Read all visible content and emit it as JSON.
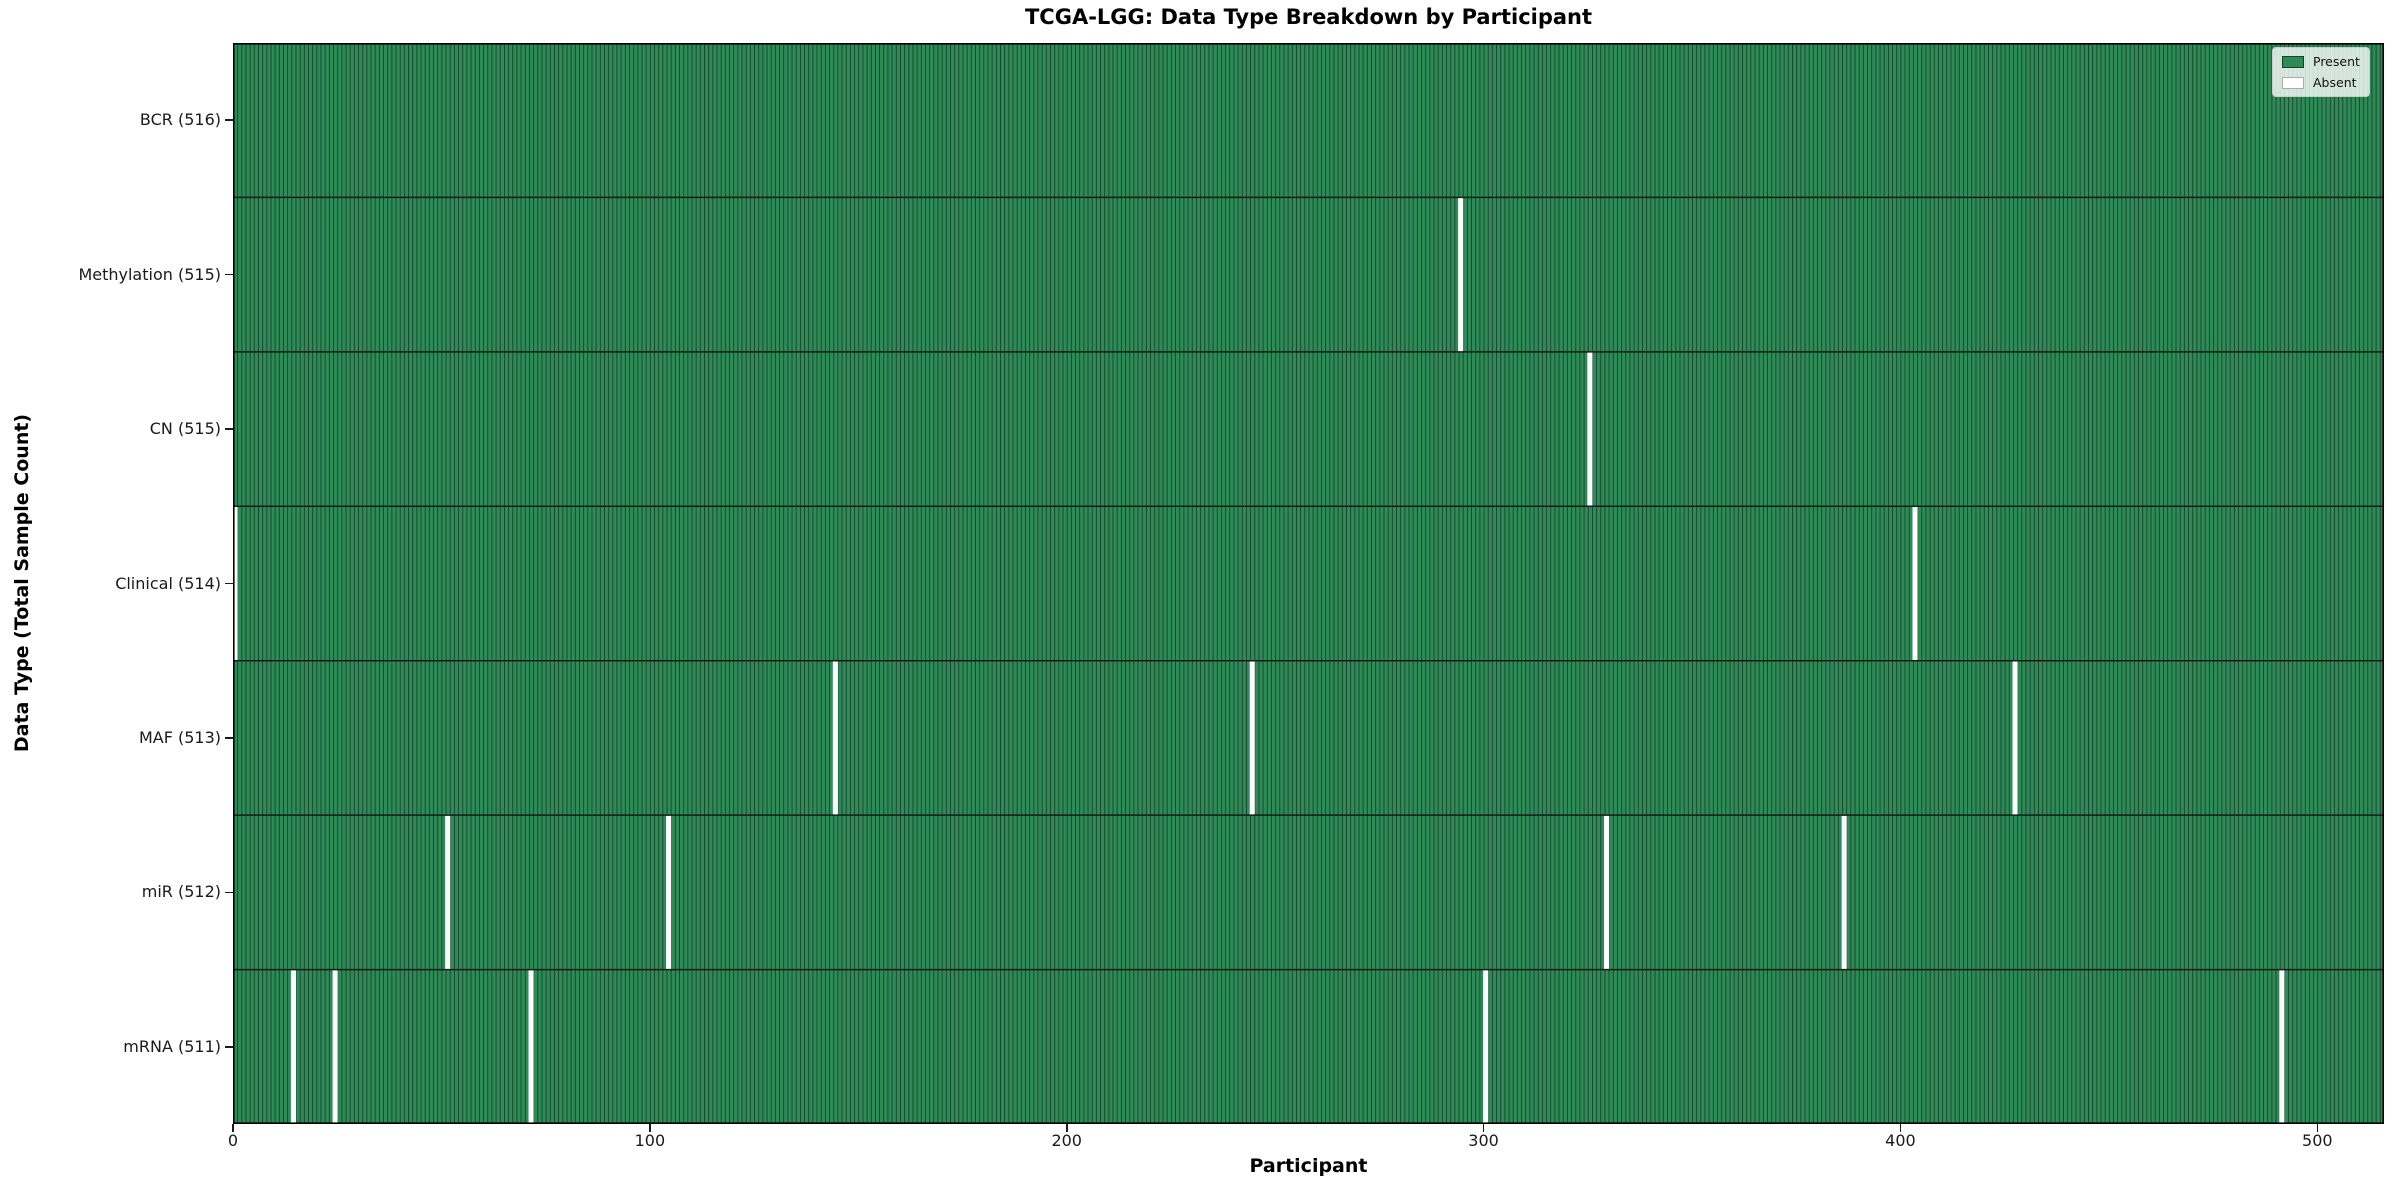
{
  "chart_data": {
    "type": "heatmap",
    "title": "TCGA-LGG: Data Type Breakdown by Participant",
    "xlabel": "Participant",
    "ylabel": "Data Type (Total Sample Count)",
    "x_ticks": [
      0,
      100,
      200,
      300,
      400,
      500
    ],
    "x_axis_range": [
      0,
      516
    ],
    "n_participants": 516,
    "grid": false,
    "legend_position": "upper right",
    "legend": [
      {
        "label": "Present",
        "color": "#2e8b57"
      },
      {
        "label": "Absent",
        "color": "#ffffff"
      }
    ],
    "colors": {
      "present": "#2e8b57",
      "absent": "#ffffff",
      "cell_edge": "#16432b",
      "row_boundary": "#1a1a1a",
      "plot_border": "#000000"
    },
    "rows": [
      {
        "label": "BCR (516)",
        "data_type": "BCR",
        "total": 516,
        "absent_participants": []
      },
      {
        "label": "Methylation (515)",
        "data_type": "Methylation",
        "total": 515,
        "absent_participants": [
          294
        ]
      },
      {
        "label": "CN (515)",
        "data_type": "CN",
        "total": 515,
        "absent_participants": [
          325
        ]
      },
      {
        "label": "Clinical (514)",
        "data_type": "Clinical",
        "total": 514,
        "absent_participants": [
          0,
          403
        ]
      },
      {
        "label": "MAF (513)",
        "data_type": "MAF",
        "total": 513,
        "absent_participants": [
          144,
          244,
          427
        ]
      },
      {
        "label": "miR (512)",
        "data_type": "miR",
        "total": 512,
        "absent_participants": [
          51,
          104,
          329,
          386
        ]
      },
      {
        "label": "mRNA (511)",
        "data_type": "mRNA",
        "total": 511,
        "absent_participants": [
          14,
          24,
          71,
          300,
          491
        ]
      }
    ]
  }
}
